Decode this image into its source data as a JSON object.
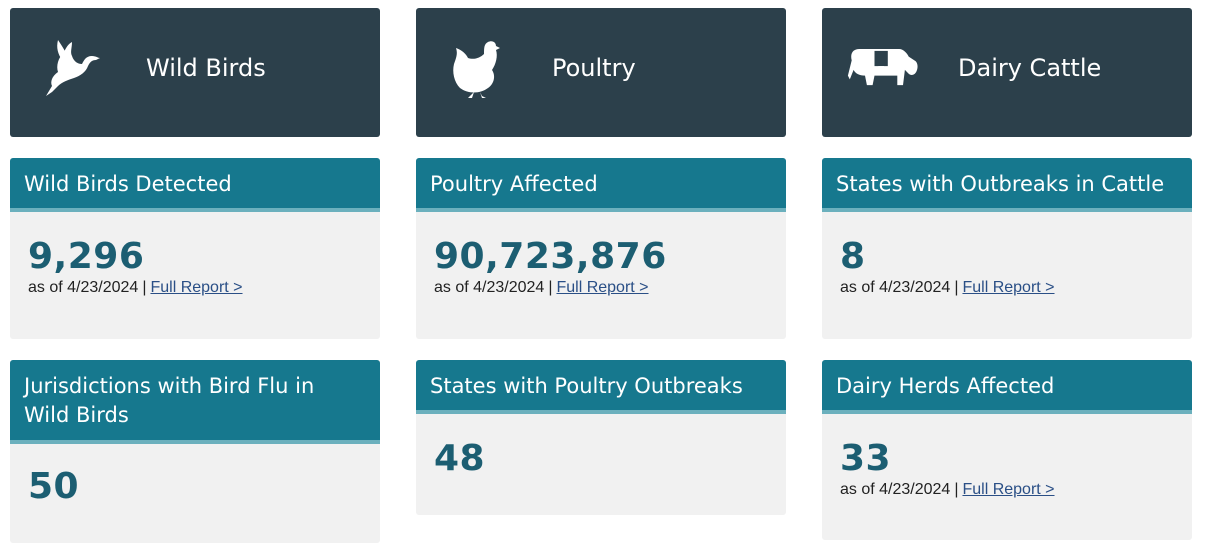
{
  "columns": [
    {
      "hero": {
        "title": "Wild Birds",
        "icon": "heron-icon"
      },
      "cards": [
        {
          "heading": "Wild Birds Detected",
          "value": "9,296",
          "as_of": "as of 4/23/2024",
          "sep": "|",
          "link": "Full Report >"
        },
        {
          "heading": "Jurisdictions with Bird Flu in Wild Birds",
          "value": "50"
        }
      ]
    },
    {
      "hero": {
        "title": "Poultry",
        "icon": "chicken-icon"
      },
      "cards": [
        {
          "heading": "Poultry Affected",
          "value": "90,723,876",
          "as_of": "as of 4/23/2024",
          "sep": "|",
          "link": "Full Report >"
        },
        {
          "heading": "States with Poultry Outbreaks",
          "value": "48"
        }
      ]
    },
    {
      "hero": {
        "title": "Dairy Cattle",
        "icon": "cow-icon"
      },
      "cards": [
        {
          "heading": "States with Outbreaks in Cattle",
          "value": "8",
          "as_of": "as of 4/23/2024",
          "sep": "|",
          "link": "Full Report >"
        },
        {
          "heading": "Dairy Herds Affected",
          "value": "33",
          "as_of": "as of 4/23/2024",
          "sep": "|",
          "link": "Full Report >"
        }
      ]
    }
  ],
  "colors": {
    "hero_bg": "#2c404b",
    "card_header": "#16788e",
    "card_header_border": "#6bb0bd",
    "value_text": "#1c5e72",
    "card_bg": "#f1f1f1",
    "link": "#2a4f86"
  }
}
